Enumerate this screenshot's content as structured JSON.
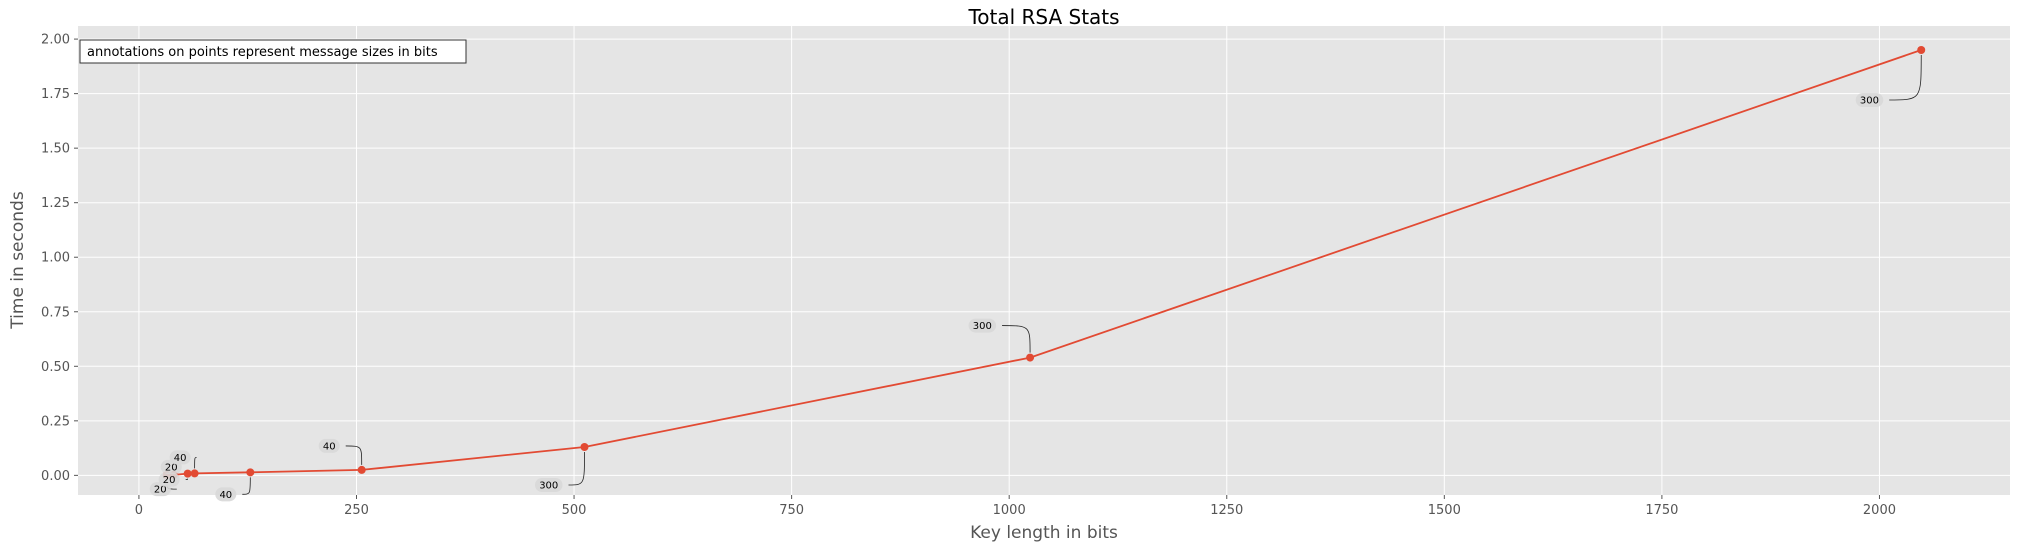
{
  "chart_data": {
    "type": "line",
    "title": "Total RSA Stats",
    "xlabel": "Key length in bits",
    "ylabel": "Time in seconds",
    "xlim": [
      -70,
      2150
    ],
    "ylim": [
      -0.09,
      2.06
    ],
    "x_ticks": [
      0,
      250,
      500,
      750,
      1000,
      1250,
      1500,
      1750,
      2000
    ],
    "x_tick_labels": [
      "0",
      "250",
      "500",
      "750",
      "1000",
      "1250",
      "1500",
      "1750",
      "2000"
    ],
    "y_ticks": [
      0.0,
      0.25,
      0.5,
      0.75,
      1.0,
      1.25,
      1.5,
      1.75,
      2.0
    ],
    "y_tick_labels": [
      "0.00",
      "0.25",
      "0.50",
      "0.75",
      "1.00",
      "1.25",
      "1.50",
      "1.75",
      "2.00"
    ],
    "grid": true,
    "note": "annotations on points represent message sizes in bits",
    "line_color": "#E24A33",
    "background_color": "#E5E5E5",
    "series": [
      {
        "x": [
          32,
          40,
          56,
          64,
          128,
          256,
          512,
          1024,
          2048
        ],
        "y": [
          0.001,
          0.002,
          0.008,
          0.009,
          0.014,
          0.025,
          0.13,
          0.54,
          1.95
        ]
      }
    ],
    "annotations": [
      {
        "label": "20",
        "x": 32,
        "y": 0.001
      },
      {
        "label": "20",
        "x": 40,
        "y": 0.002
      },
      {
        "label": "20",
        "x": 56,
        "y": 0.008
      },
      {
        "label": "40",
        "x": 64,
        "y": 0.009
      },
      {
        "label": "40",
        "x": 128,
        "y": 0.014
      },
      {
        "label": "40",
        "x": 256,
        "y": 0.025
      },
      {
        "label": "300",
        "x": 512,
        "y": 0.13
      },
      {
        "label": "300",
        "x": 1024,
        "y": 0.54
      },
      {
        "label": "300",
        "x": 2048,
        "y": 1.95
      }
    ]
  }
}
